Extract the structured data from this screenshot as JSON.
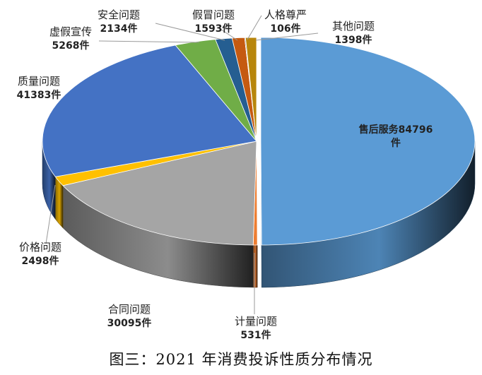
{
  "caption": "图三：2021 年消费投诉性质分布情况",
  "chart_data": {
    "type": "pie",
    "title": "图三：2021 年消费投诉性质分布情况",
    "unit": "件",
    "slices": [
      {
        "name": "售后服务",
        "value": 84796,
        "label_lines": [
          "售后服务84796",
          "件"
        ],
        "color": "#5B9BD5"
      },
      {
        "name": "计量问题",
        "value": 531,
        "label_lines": [
          "计量问题",
          "531件"
        ],
        "color": "#ED7D31"
      },
      {
        "name": "合同问题",
        "value": 30095,
        "label_lines": [
          "合同问题",
          "30095件"
        ],
        "color": "#A5A5A5"
      },
      {
        "name": "价格问题",
        "value": 2498,
        "label_lines": [
          "价格问题",
          "2498件"
        ],
        "color": "#FFC000"
      },
      {
        "name": "质量问题",
        "value": 41383,
        "label_lines": [
          "质量问题",
          "41383件"
        ],
        "color": "#4472C4"
      },
      {
        "name": "虚假宣传",
        "value": 5268,
        "label_lines": [
          "虚假宣传",
          "5268件"
        ],
        "color": "#70AD47"
      },
      {
        "name": "安全问题",
        "value": 2134,
        "label_lines": [
          "安全问题",
          "2134件"
        ],
        "color": "#255E91"
      },
      {
        "name": "假冒问题",
        "value": 1593,
        "label_lines": [
          "假冒问题",
          "1593件"
        ],
        "color": "#C55A11"
      },
      {
        "name": "人格尊严",
        "value": 106,
        "label_lines": [
          "人格尊严",
          "106件"
        ],
        "color": "#636363"
      },
      {
        "name": "其他问题",
        "value": 1398,
        "label_lines": [
          "其他问题",
          "1398件"
        ],
        "color": "#B8860B"
      }
    ]
  }
}
